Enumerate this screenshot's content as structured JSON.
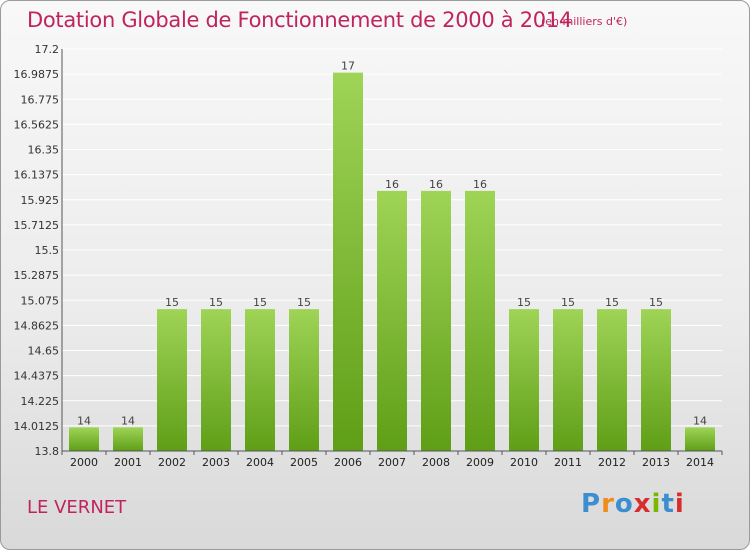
{
  "header": {
    "title": "Dotation Globale de Fonctionnement de 2000 à 2014",
    "unit": "(en milliers d'€)"
  },
  "footer": {
    "commune": "LE VERNET",
    "logo_text": "Proxiti",
    "logo_colors": [
      "#3b8fd0",
      "#f08c1e",
      "#3b8fd0",
      "#d62e2e",
      "#7ab800",
      "#3b8fd0",
      "#d62e2e"
    ]
  },
  "colors": {
    "bar_top": "#9fd457",
    "bar_bottom": "#5f9e17",
    "grid": "#ffffff",
    "title": "#c0245e"
  },
  "chart_data": {
    "type": "bar",
    "title": "Dotation Globale de Fonctionnement de 2000 à 2014",
    "subtitle": "(en milliers d'€)",
    "xlabel": "",
    "ylabel": "",
    "categories": [
      "2000",
      "2001",
      "2002",
      "2003",
      "2004",
      "2005",
      "2006",
      "2007",
      "2008",
      "2009",
      "2010",
      "2011",
      "2012",
      "2013",
      "2014"
    ],
    "values": [
      14,
      14,
      15,
      15,
      15,
      15,
      17,
      16,
      16,
      16,
      15,
      15,
      15,
      15,
      14
    ],
    "data_labels": [
      "14",
      "14",
      "15",
      "15",
      "15",
      "15",
      "17",
      "16",
      "16",
      "16",
      "15",
      "15",
      "15",
      "15",
      "14"
    ],
    "ylim": [
      13.8,
      17.2
    ],
    "yticks": [
      "13.8",
      "14.0125",
      "14.225",
      "14.4375",
      "14.65",
      "14.8625",
      "15.075",
      "15.2875",
      "15.5",
      "15.7125",
      "15.925",
      "16.1375",
      "16.35",
      "16.5625",
      "16.775",
      "16.9875",
      "17.2"
    ],
    "grid": true,
    "legend": "none"
  }
}
